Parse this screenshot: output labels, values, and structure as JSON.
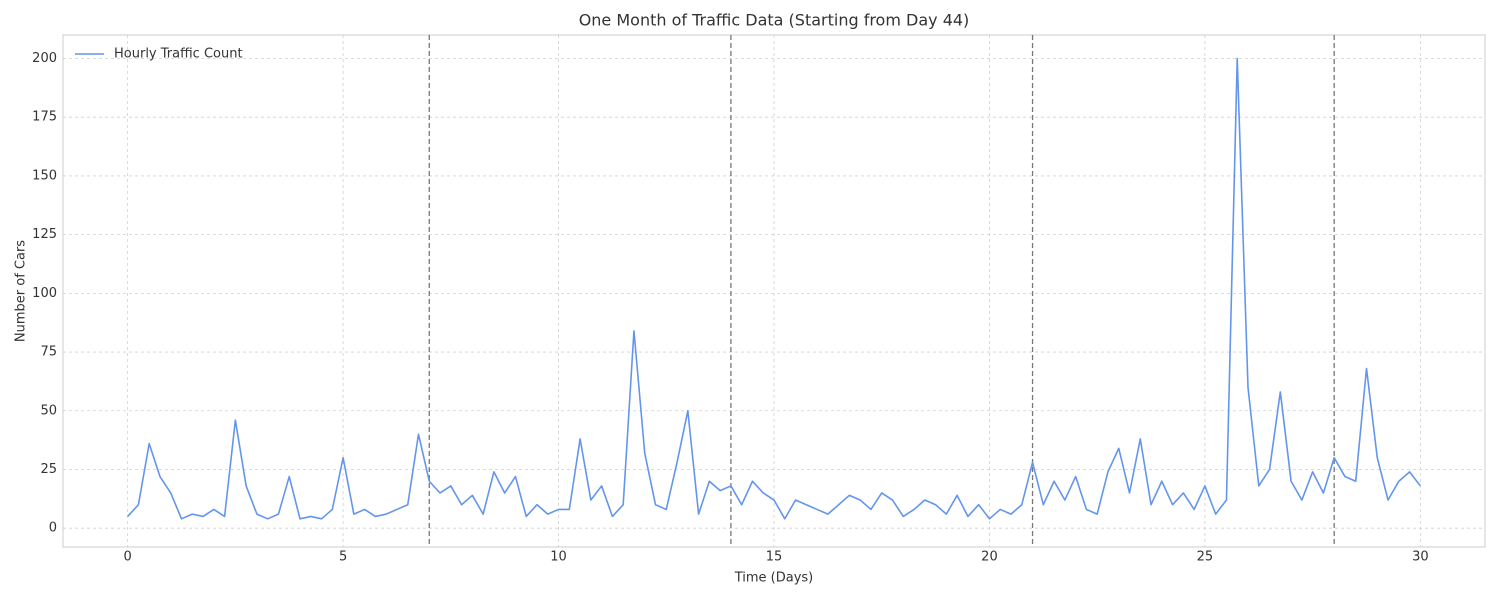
{
  "chart_data": {
    "type": "line",
    "title": "One Month of Traffic Data (Starting from Day 44)",
    "x_label": "Time (Days)",
    "y_label": "Number of Cars",
    "x": [
      0,
      0.25,
      0.5,
      0.75,
      1,
      1.25,
      1.5,
      1.75,
      2,
      2.25,
      2.5,
      2.75,
      3,
      3.25,
      3.5,
      3.75,
      4,
      4.25,
      4.5,
      4.75,
      5,
      5.25,
      5.5,
      5.75,
      6,
      6.25,
      6.5,
      6.75,
      7,
      7.25,
      7.5,
      7.75,
      8,
      8.25,
      8.5,
      8.75,
      9,
      9.25,
      9.5,
      9.75,
      10,
      10.25,
      10.5,
      10.75,
      11,
      11.25,
      11.5,
      11.75,
      12,
      12.25,
      12.5,
      12.75,
      13,
      13.25,
      13.5,
      13.75,
      14,
      14.25,
      14.5,
      14.75,
      15,
      15.25,
      15.5,
      15.75,
      16,
      16.25,
      16.5,
      16.75,
      17,
      17.25,
      17.5,
      17.75,
      18,
      18.25,
      18.5,
      18.75,
      19,
      19.25,
      19.5,
      19.75,
      20,
      20.25,
      20.5,
      20.75,
      21,
      21.25,
      21.5,
      21.75,
      22,
      22.25,
      22.5,
      22.75,
      23,
      23.25,
      23.5,
      23.75,
      24,
      24.25,
      24.5,
      24.75,
      25,
      25.25,
      25.5,
      25.75,
      26,
      26.25,
      26.5,
      26.75,
      27,
      27.25,
      27.5,
      27.75,
      28,
      28.25,
      28.5,
      28.75,
      29,
      29.25,
      29.5,
      29.75,
      30
    ],
    "series": [
      {
        "name": "Hourly Traffic Count",
        "color": "#6495ed",
        "values": [
          5,
          10,
          36,
          22,
          15,
          4,
          6,
          5,
          8,
          5,
          46,
          18,
          6,
          4,
          6,
          22,
          4,
          5,
          4,
          8,
          30,
          6,
          8,
          5,
          6,
          8,
          10,
          40,
          20,
          15,
          18,
          10,
          14,
          6,
          24,
          15,
          22,
          5,
          10,
          6,
          8,
          8,
          38,
          12,
          18,
          5,
          10,
          84,
          32,
          10,
          8,
          28,
          50,
          6,
          20,
          16,
          18,
          10,
          20,
          15,
          12,
          4,
          12,
          10,
          8,
          6,
          10,
          14,
          12,
          8,
          15,
          12,
          5,
          8,
          12,
          10,
          6,
          14,
          5,
          10,
          4,
          8,
          6,
          10,
          28,
          10,
          20,
          12,
          22,
          8,
          6,
          24,
          34,
          15,
          38,
          10,
          20,
          10,
          15,
          8,
          18,
          6,
          12,
          200,
          60,
          18,
          25,
          58,
          20,
          12,
          24,
          15,
          30,
          22,
          20,
          68,
          30,
          12,
          20,
          24,
          18
        ]
      }
    ],
    "vlines": [
      7,
      14,
      21,
      28
    ],
    "xlim": [
      -1.5,
      31.5
    ],
    "ylim": [
      -8,
      210
    ],
    "xticks": [
      0,
      5,
      10,
      15,
      20,
      25,
      30
    ],
    "yticks": [
      0,
      25,
      50,
      75,
      100,
      125,
      150,
      175,
      200
    ],
    "grid": true,
    "legend": "upper-left"
  }
}
